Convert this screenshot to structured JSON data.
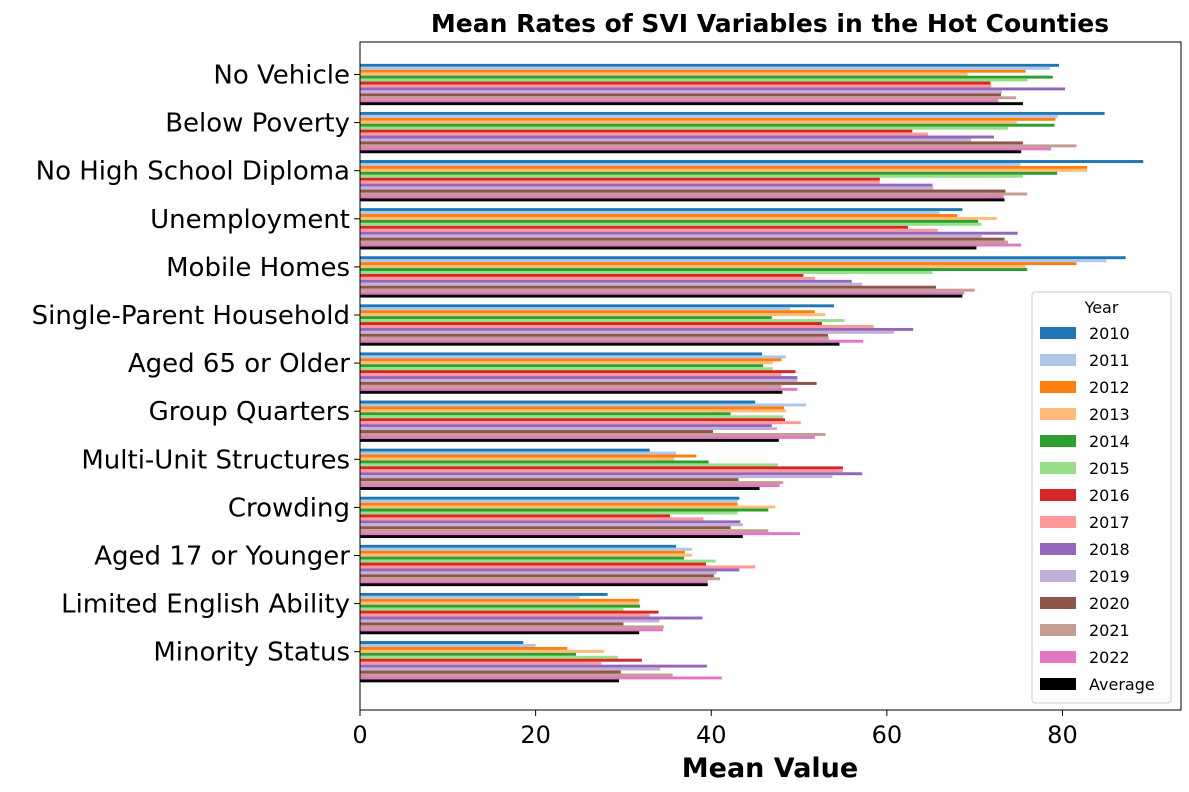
{
  "chart_data": {
    "type": "bar",
    "orientation": "horizontal",
    "title": "Mean Rates of SVI Variables in the Hot Counties",
    "xlabel": "Mean Value",
    "ylabel": "",
    "xlim": [
      0,
      93.5
    ],
    "xticks": [
      0,
      20,
      40,
      60,
      80
    ],
    "grid": false,
    "legend_title": "Year",
    "legend_position": "right",
    "categories": [
      "No Vehicle",
      "Below Poverty",
      "No High School Diploma",
      "Unemployment",
      "Mobile Homes",
      "Single-Parent Household",
      "Aged 65 or Older",
      "Group Quarters",
      "Multi-Unit Structures",
      "Crowding",
      "Aged 17 or Younger",
      "Limited English Ability",
      "Minority Status"
    ],
    "series": [
      {
        "name": "2010",
        "color": "#1f77b4",
        "values": [
          79.6,
          84.8,
          89.2,
          68.6,
          87.2,
          54.0,
          45.8,
          45.0,
          33.0,
          43.2,
          36.0,
          28.2,
          18.6
        ]
      },
      {
        "name": "2011",
        "color": "#aec7e8",
        "values": [
          78.6,
          79.5,
          75.2,
          66.0,
          85.0,
          49.0,
          48.5,
          50.8,
          36.0,
          43.0,
          37.8,
          25.0,
          20.0
        ]
      },
      {
        "name": "2012",
        "color": "#ff7f0e",
        "values": [
          75.8,
          79.2,
          82.8,
          68.0,
          81.6,
          51.8,
          48.0,
          48.3,
          38.3,
          43.0,
          37.0,
          31.8,
          23.6
        ]
      },
      {
        "name": "2013",
        "color": "#ffbb78",
        "values": [
          69.2,
          74.8,
          82.8,
          72.5,
          75.8,
          53.0,
          47.0,
          48.5,
          35.8,
          47.3,
          37.8,
          31.8,
          27.8
        ]
      },
      {
        "name": "2014",
        "color": "#2ca02c",
        "values": [
          78.9,
          79.1,
          79.4,
          70.4,
          76.0,
          46.9,
          45.9,
          42.2,
          39.7,
          46.5,
          36.9,
          31.9,
          24.6
        ]
      },
      {
        "name": "2015",
        "color": "#98df8a",
        "values": [
          76.0,
          73.8,
          75.5,
          70.8,
          65.2,
          55.2,
          47.0,
          48.2,
          47.6,
          43.0,
          40.5,
          30.0,
          29.4
        ]
      },
      {
        "name": "2016",
        "color": "#d62728",
        "values": [
          71.8,
          62.9,
          59.2,
          62.4,
          50.5,
          52.6,
          49.6,
          48.4,
          55.0,
          35.3,
          39.4,
          34.0,
          32.1
        ]
      },
      {
        "name": "2017",
        "color": "#ff9896",
        "values": [
          71.9,
          64.7,
          59.2,
          65.8,
          51.8,
          58.5,
          48.0,
          50.2,
          55.0,
          39.1,
          45.0,
          33.0,
          27.5
        ]
      },
      {
        "name": "2018",
        "color": "#9467bd",
        "values": [
          80.3,
          72.2,
          65.2,
          74.9,
          56.0,
          63.0,
          49.8,
          46.9,
          57.2,
          43.3,
          43.2,
          39.0,
          39.5
        ]
      },
      {
        "name": "2019",
        "color": "#c5b0d5",
        "values": [
          73.1,
          69.6,
          65.3,
          70.8,
          57.2,
          60.8,
          49.8,
          47.5,
          53.8,
          43.6,
          40.6,
          34.1,
          34.2
        ]
      },
      {
        "name": "2020",
        "color": "#8c564b",
        "values": [
          73.0,
          75.5,
          73.5,
          73.4,
          65.6,
          53.3,
          52.0,
          40.2,
          43.1,
          42.2,
          40.3,
          30.0,
          29.7
        ]
      },
      {
        "name": "2021",
        "color": "#c49c94",
        "values": [
          74.7,
          81.6,
          76.0,
          73.8,
          70.0,
          53.4,
          48.0,
          53.0,
          48.2,
          46.5,
          41.0,
          34.6,
          35.6
        ]
      },
      {
        "name": "2022",
        "color": "#e377c2",
        "values": [
          72.7,
          78.7,
          73.3,
          75.3,
          68.8,
          57.3,
          49.8,
          51.8,
          47.8,
          50.1,
          39.6,
          34.5,
          41.2
        ]
      },
      {
        "name": "Average",
        "color": "#000000",
        "values": [
          75.5,
          75.3,
          73.4,
          70.2,
          68.6,
          54.6,
          48.1,
          47.7,
          45.5,
          43.6,
          39.6,
          31.8,
          29.5
        ]
      }
    ]
  }
}
